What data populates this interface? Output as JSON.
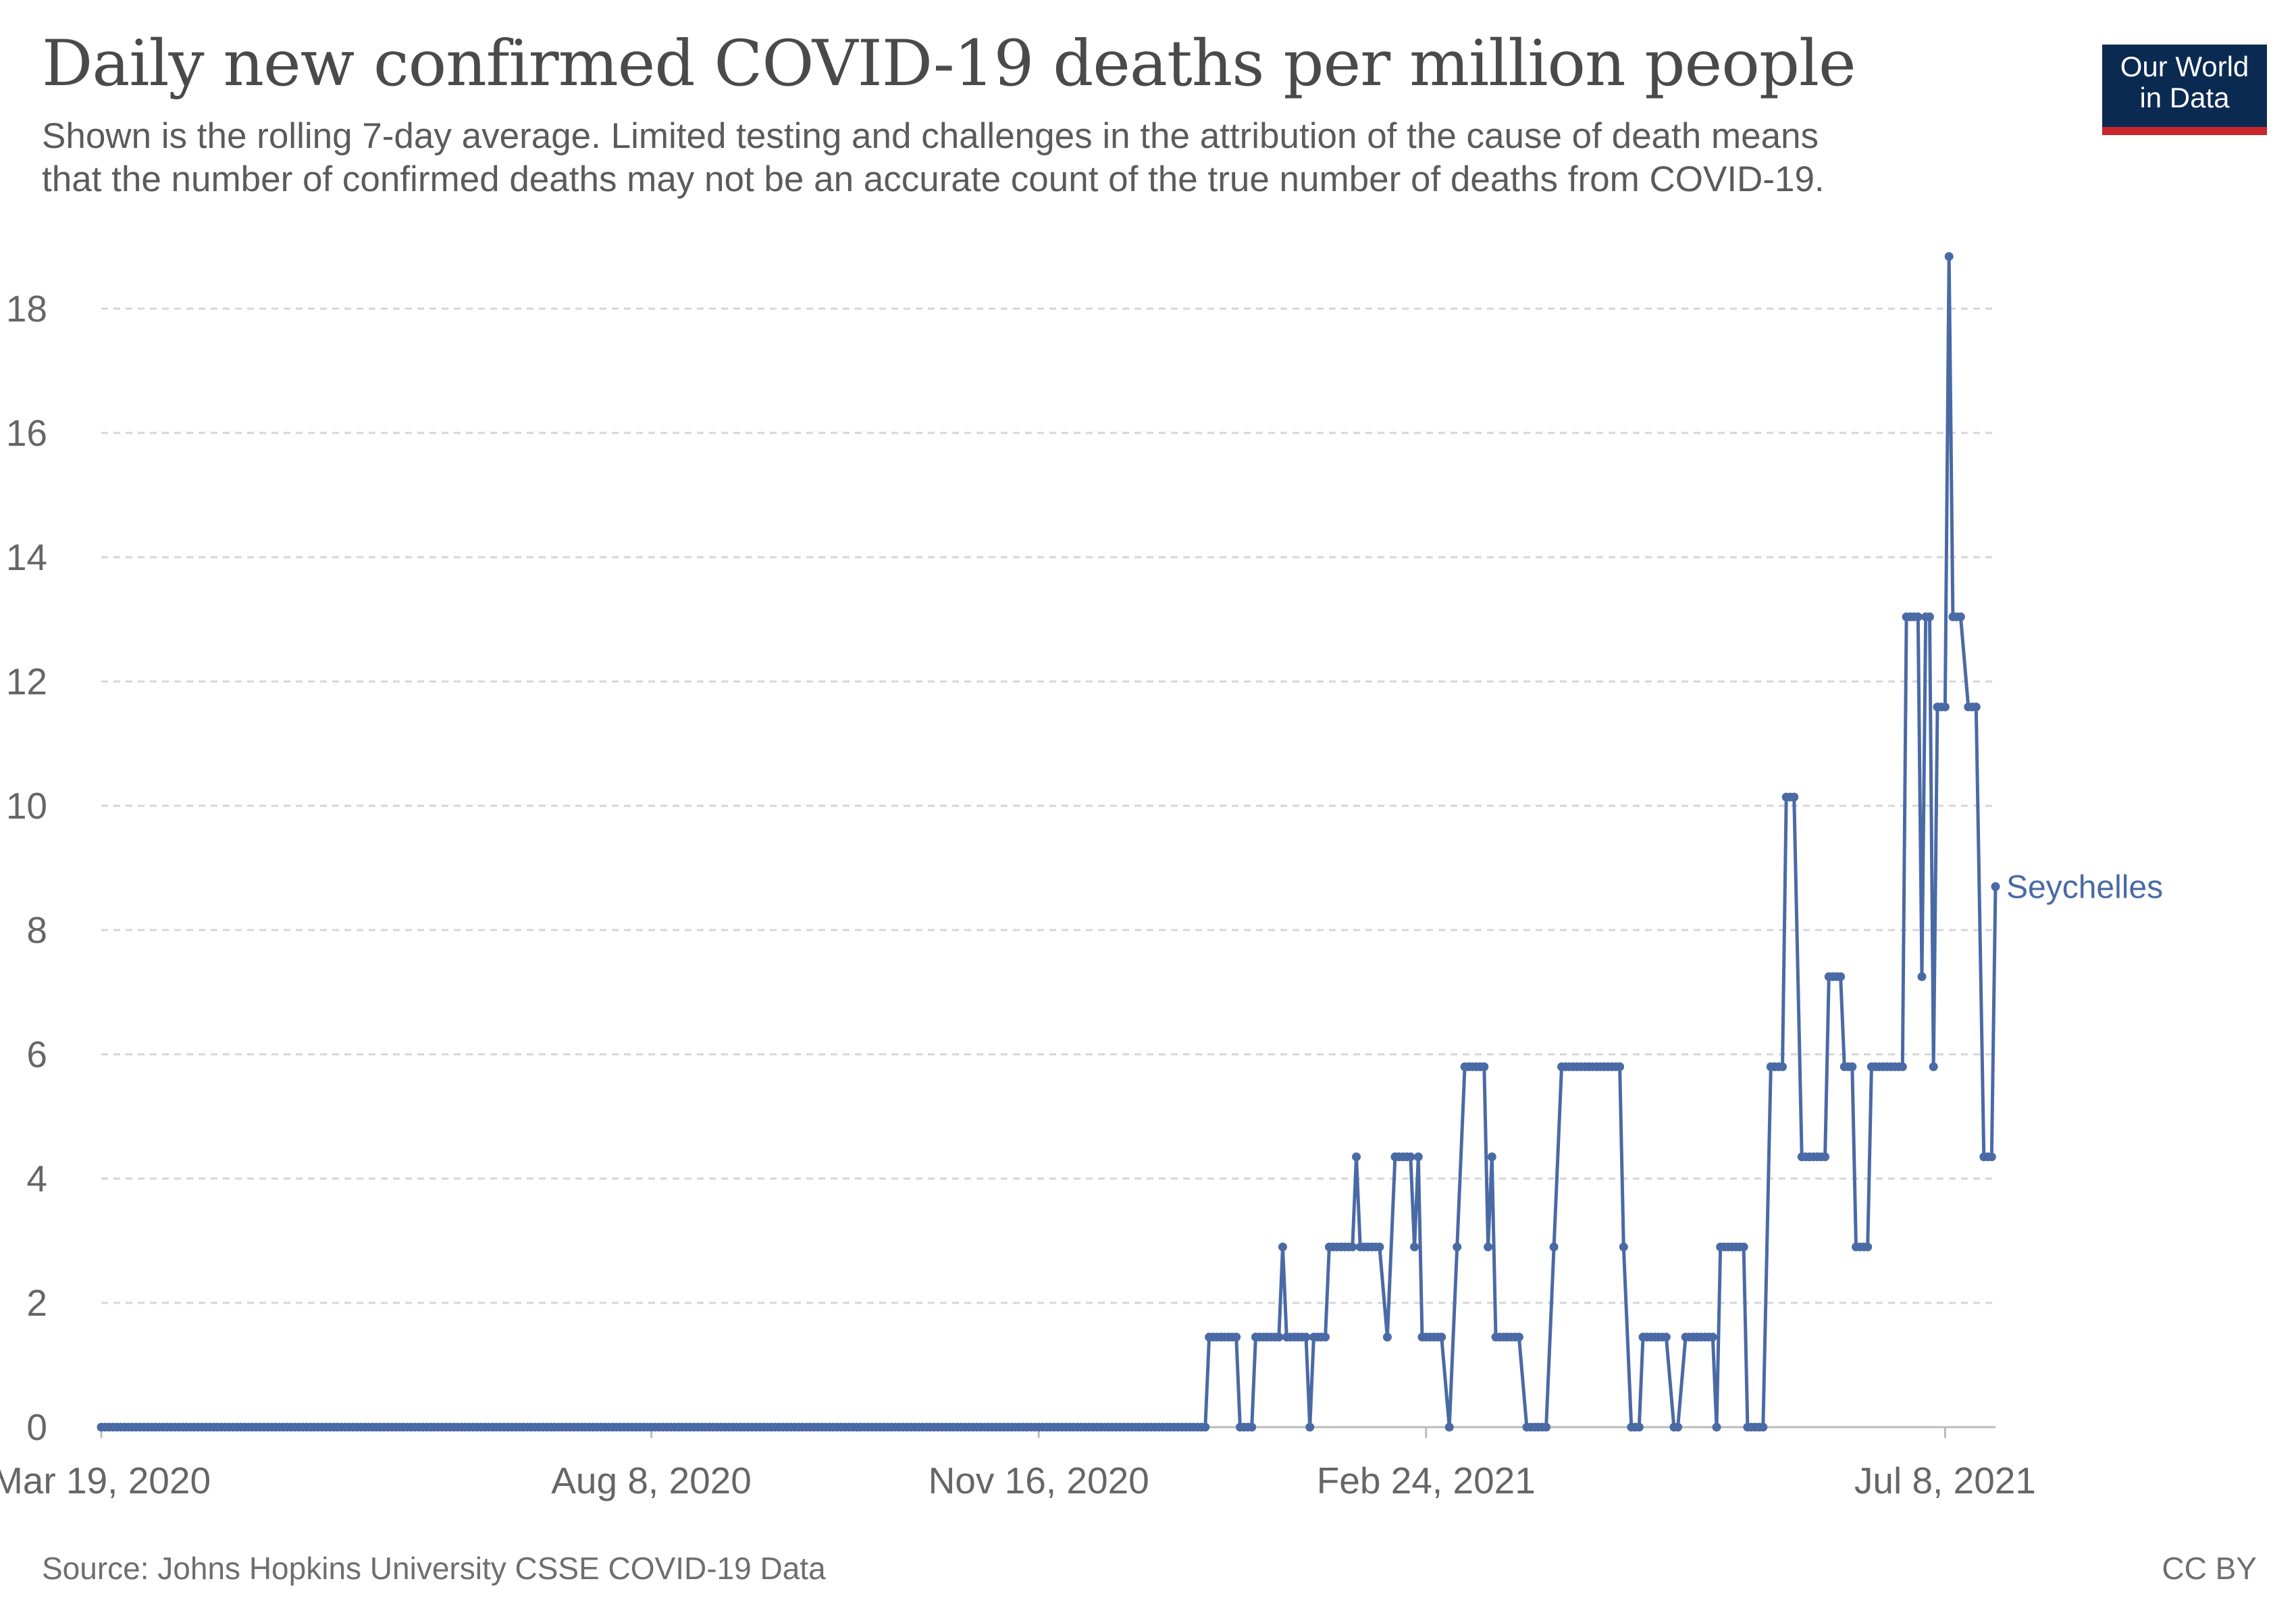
{
  "title": "Daily new confirmed COVID-19 deaths per million people",
  "subtitle_line1": "Shown is the rolling 7-day average. Limited testing and challenges in the attribution of the cause of death means",
  "subtitle_line2": "that the number of confirmed deaths may not be an accurate count of the true number of deaths from COVID-19.",
  "logo_line1": "Our World",
  "logo_line2": "in Data",
  "source": "Source: Johns Hopkins University CSSE COVID-19 Data",
  "license": "CC BY",
  "colors": {
    "series": "#4a6aa5",
    "logo_bg": "#0b2a52",
    "logo_bar": "#c8262b"
  },
  "chart_data": {
    "type": "line",
    "title": "Daily new confirmed COVID-19 deaths per million people",
    "ylim": [
      0,
      19
    ],
    "yticks": [
      0,
      2,
      4,
      6,
      8,
      10,
      12,
      14,
      16,
      18
    ],
    "xticks": [
      "Mar 19, 2020",
      "Aug 8, 2020",
      "Nov 16, 2020",
      "Feb 24, 2021",
      "Jul 8, 2021"
    ],
    "grid": "horizontal dashed",
    "series": [
      {
        "name": "Seychelles",
        "points": [
          [
            "2020-03-19",
            0
          ],
          [
            "2020-12-29",
            0
          ],
          [
            "2020-12-30",
            1.45
          ],
          [
            "2021-01-06",
            1.45
          ],
          [
            "2021-01-07",
            0
          ],
          [
            "2021-01-10",
            0
          ],
          [
            "2021-01-11",
            1.45
          ],
          [
            "2021-01-17",
            1.45
          ],
          [
            "2021-01-18",
            2.9
          ],
          [
            "2021-01-19",
            1.45
          ],
          [
            "2021-01-24",
            1.45
          ],
          [
            "2021-01-25",
            0
          ],
          [
            "2021-01-26",
            1.45
          ],
          [
            "2021-01-29",
            1.45
          ],
          [
            "2021-01-30",
            2.9
          ],
          [
            "2021-02-05",
            2.9
          ],
          [
            "2021-02-06",
            4.35
          ],
          [
            "2021-02-07",
            2.9
          ],
          [
            "2021-02-12",
            2.9
          ],
          [
            "2021-02-14",
            1.45
          ],
          [
            "2021-02-16",
            4.35
          ],
          [
            "2021-02-20",
            4.35
          ],
          [
            "2021-02-21",
            2.9
          ],
          [
            "2021-02-22",
            4.35
          ],
          [
            "2021-02-23",
            1.45
          ],
          [
            "2021-02-28",
            1.45
          ],
          [
            "2021-03-02",
            0
          ],
          [
            "2021-03-04",
            2.9
          ],
          [
            "2021-03-06",
            5.8
          ],
          [
            "2021-03-11",
            5.8
          ],
          [
            "2021-03-12",
            2.9
          ],
          [
            "2021-03-13",
            4.35
          ],
          [
            "2021-03-14",
            1.45
          ],
          [
            "2021-03-20",
            1.45
          ],
          [
            "2021-03-22",
            0
          ],
          [
            "2021-03-27",
            0
          ],
          [
            "2021-03-29",
            2.9
          ],
          [
            "2021-03-31",
            5.8
          ],
          [
            "2021-04-15",
            5.8
          ],
          [
            "2021-04-16",
            2.9
          ],
          [
            "2021-04-18",
            0
          ],
          [
            "2021-04-20",
            0
          ],
          [
            "2021-04-21",
            1.45
          ],
          [
            "2021-04-27",
            1.45
          ],
          [
            "2021-04-29",
            0
          ],
          [
            "2021-04-30",
            0
          ],
          [
            "2021-05-02",
            1.45
          ],
          [
            "2021-05-09",
            1.45
          ],
          [
            "2021-05-10",
            0
          ],
          [
            "2021-05-11",
            2.9
          ],
          [
            "2021-05-17",
            2.9
          ],
          [
            "2021-05-18",
            0
          ],
          [
            "2021-05-22",
            0
          ],
          [
            "2021-05-24",
            5.8
          ],
          [
            "2021-05-27",
            5.8
          ],
          [
            "2021-05-28",
            10.14
          ],
          [
            "2021-05-30",
            10.14
          ],
          [
            "2021-06-01",
            4.35
          ],
          [
            "2021-06-07",
            4.35
          ],
          [
            "2021-06-08",
            7.25
          ],
          [
            "2021-06-11",
            7.25
          ],
          [
            "2021-06-12",
            5.8
          ],
          [
            "2021-06-14",
            5.8
          ],
          [
            "2021-06-15",
            2.9
          ],
          [
            "2021-06-18",
            2.9
          ],
          [
            "2021-06-19",
            5.8
          ],
          [
            "2021-06-27",
            5.8
          ],
          [
            "2021-06-28",
            13.04
          ],
          [
            "2021-07-01",
            13.04
          ],
          [
            "2021-07-02",
            7.25
          ],
          [
            "2021-07-03",
            13.04
          ],
          [
            "2021-07-04",
            13.04
          ],
          [
            "2021-07-05",
            5.8
          ],
          [
            "2021-07-06",
            11.59
          ],
          [
            "2021-07-08",
            11.59
          ],
          [
            "2021-07-09",
            18.84
          ],
          [
            "2021-07-10",
            13.04
          ],
          [
            "2021-07-12",
            13.04
          ],
          [
            "2021-07-14",
            11.59
          ],
          [
            "2021-07-16",
            11.59
          ],
          [
            "2021-07-18",
            4.35
          ],
          [
            "2021-07-20",
            4.35
          ],
          [
            "2021-07-21",
            8.7
          ]
        ]
      }
    ]
  }
}
